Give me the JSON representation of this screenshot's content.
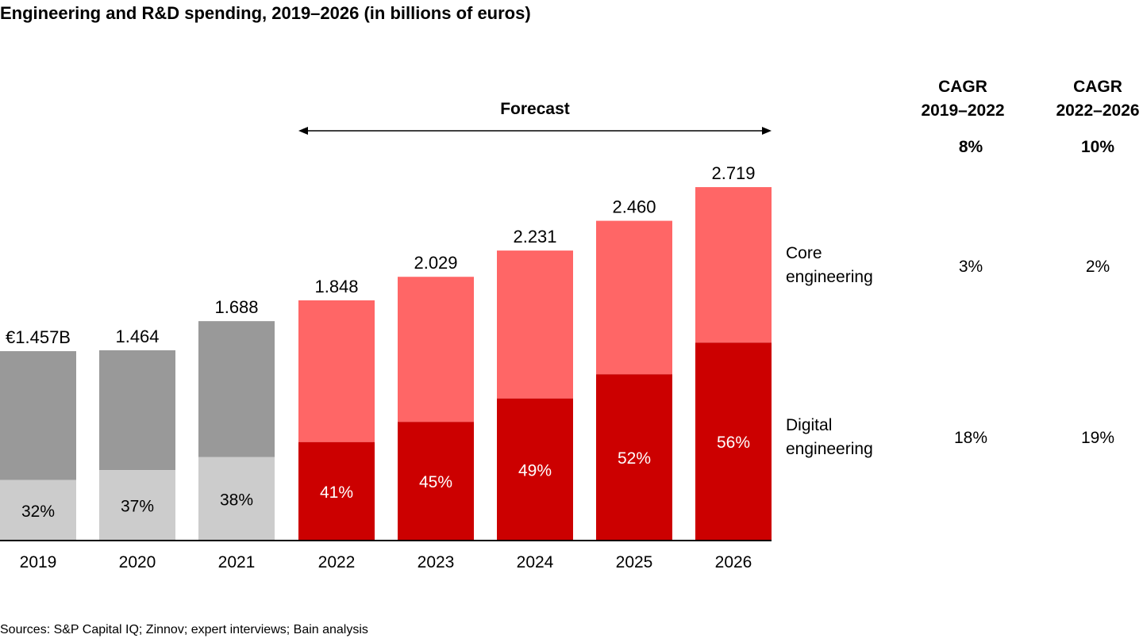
{
  "title": "Engineering and R&D spending, 2019–2026 (in billions of euros)",
  "sources": "Sources: S&P Capital IQ; Zinnov; expert interviews; Bain analysis",
  "forecast_label": "Forecast",
  "cagr": {
    "headers": [
      {
        "line1": "CAGR",
        "line2": "2019–2022"
      },
      {
        "line1": "CAGR",
        "line2": "2022–2026"
      }
    ],
    "total": [
      "8%",
      "10%"
    ],
    "core": [
      "3%",
      "2%"
    ],
    "digital": [
      "18%",
      "19%"
    ]
  },
  "segments": {
    "core": {
      "line1": "Core",
      "line2": "engineering"
    },
    "digital": {
      "line1": "Digital",
      "line2": "engineering"
    }
  },
  "colors": {
    "historical_core": "#999999",
    "historical_digital": "#cccccc",
    "forecast_core": "#ff6666",
    "forecast_digital": "#cc0000"
  },
  "chart_data": {
    "type": "bar",
    "stacked": true,
    "title": "Engineering and R&D spending, 2019–2026 (in billions of euros)",
    "categories": [
      "2019",
      "2020",
      "2021",
      "2022",
      "2023",
      "2024",
      "2025",
      "2026"
    ],
    "totals": [
      1.457,
      1.464,
      1.688,
      1.848,
      2.029,
      2.231,
      2.46,
      2.719
    ],
    "total_labels": [
      "€1.457B",
      "1.464",
      "1.688",
      "1.848",
      "2.029",
      "2.231",
      "2.460",
      "2.719"
    ],
    "digital_share_pct": [
      32,
      37,
      38,
      41,
      45,
      49,
      52,
      56
    ],
    "digital_share_labels": [
      "32%",
      "37%",
      "38%",
      "41%",
      "45%",
      "49%",
      "52%",
      "56%"
    ],
    "forecast_from": "2022",
    "ylim": [
      0,
      2.8
    ],
    "grid": false
  }
}
